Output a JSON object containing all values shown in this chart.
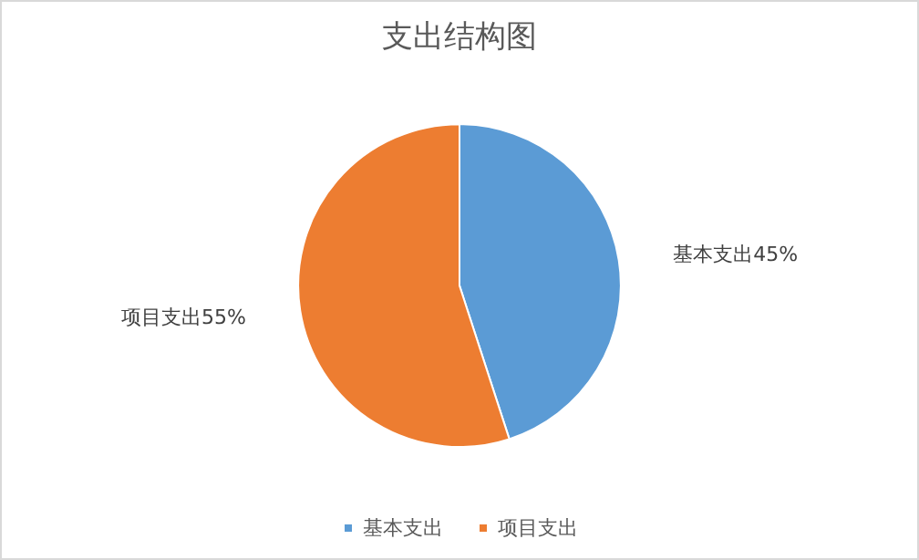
{
  "chart_data": {
    "type": "pie",
    "title": "支出结构图",
    "categories": [
      "基本支出",
      "项目支出"
    ],
    "values": [
      45,
      55
    ],
    "colors": [
      "#5b9bd5",
      "#ed7d31"
    ],
    "value_labels": [
      "基本支出45%",
      "项目支出55%"
    ],
    "legend": "bottom"
  }
}
